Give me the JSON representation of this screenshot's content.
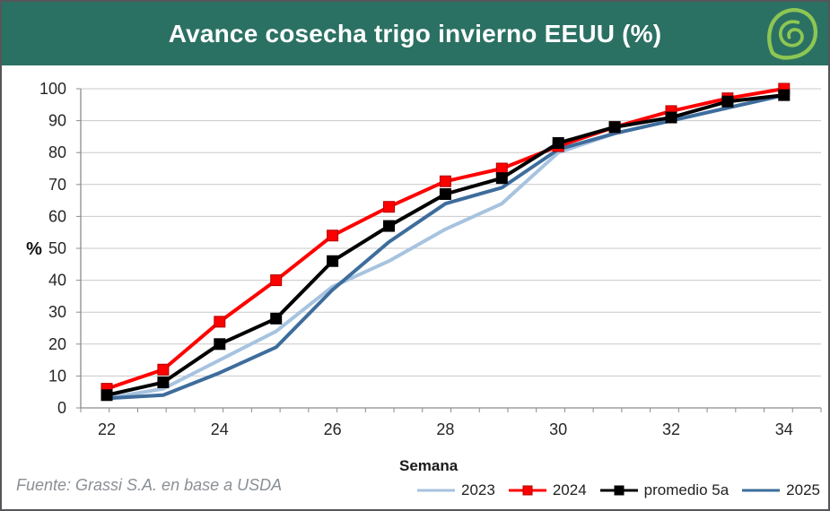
{
  "header": {
    "title": "Avance cosecha trigo invierno EEUU (%)",
    "bg_color": "#2b7163",
    "logo_color": "#8dc653"
  },
  "footer": {
    "source": "Fuente: Grassi S.A. en base a USDA"
  },
  "chart_data": {
    "type": "line",
    "title": "Avance cosecha trigo invierno EEUU (%)",
    "xlabel": "Semana",
    "ylabel": "%",
    "x": [
      22,
      23,
      24,
      25,
      26,
      27,
      28,
      29,
      30,
      31,
      32,
      33,
      34
    ],
    "x_tick_labels": [
      "22",
      "24",
      "26",
      "28",
      "30",
      "32",
      "34"
    ],
    "y_ticks": [
      0,
      10,
      20,
      30,
      40,
      50,
      60,
      70,
      80,
      90,
      100
    ],
    "ylim": [
      0,
      100
    ],
    "grid": true,
    "legend_position": "bottom",
    "colors": {
      "gridline": "#c9c9c9",
      "axis": "#8c8c8c",
      "tick_text": "#262626"
    },
    "series": [
      {
        "name": "2023",
        "color": "#a6c3df",
        "marker": "none",
        "values": [
          3,
          6,
          15,
          24,
          38,
          46,
          56,
          64,
          80,
          86,
          90,
          94,
          98
        ]
      },
      {
        "name": "2024",
        "color": "#ff0000",
        "marker": "square",
        "marker_stroke": "#b00000",
        "values": [
          6,
          12,
          27,
          40,
          54,
          63,
          71,
          75,
          82,
          88,
          93,
          97,
          100
        ]
      },
      {
        "name": "promedio 5a",
        "color": "#000000",
        "marker": "square",
        "marker_stroke": "#000000",
        "values": [
          4,
          8,
          20,
          28,
          46,
          57,
          67,
          72,
          83,
          88,
          91,
          96,
          98
        ]
      },
      {
        "name": "2025",
        "color": "#3e6d9c",
        "marker": "none",
        "values": [
          3,
          4,
          11,
          19,
          37,
          52,
          64,
          69,
          81,
          86,
          90,
          94,
          98
        ]
      }
    ],
    "draw_order": [
      0,
      3,
      1,
      2
    ]
  }
}
